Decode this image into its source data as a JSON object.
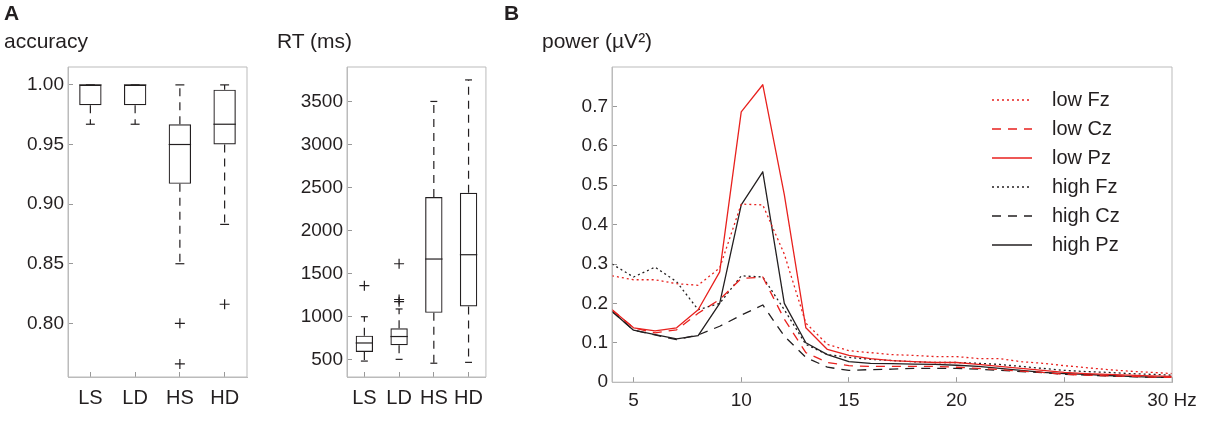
{
  "chart_data": [
    {
      "type": "box",
      "annotations": [
        "A"
      ],
      "ylabel": "accuracy",
      "categories": [
        "LS",
        "LD",
        "HS",
        "HD"
      ],
      "ylim": [
        0.755,
        1.015
      ],
      "yticks": [
        {
          "value": 0.8,
          "label": "0.80"
        },
        {
          "value": 0.85,
          "label": "0.85"
        },
        {
          "value": 0.9,
          "label": "0.90"
        },
        {
          "value": 0.95,
          "label": "0.95"
        },
        {
          "value": 1,
          "label": "1.00"
        }
      ],
      "boxes": [
        {
          "low": 0.967,
          "q1": 0.983,
          "median": 1,
          "q3": 1,
          "high": 1
        },
        {
          "low": 0.967,
          "q1": 0.983,
          "median": 1,
          "q3": 1,
          "high": 1
        },
        {
          "low": 0.85,
          "q1": 0.917,
          "median": 0.95,
          "q3": 0.967,
          "high": 1,
          "outliers": [
            0.8,
            0.766
          ]
        },
        {
          "low": 0.883,
          "q1": 0.95,
          "median": 0.967,
          "q3": 0.996,
          "high": 1,
          "outliers": [
            0.816
          ]
        }
      ]
    },
    {
      "type": "box",
      "ylabel": "RT (ms)",
      "categories": [
        "LS",
        "LD",
        "HS",
        "HD"
      ],
      "ylim": [
        300,
        3900
      ],
      "yticks": [
        500,
        1000,
        1500,
        2000,
        2500,
        3000,
        3500
      ],
      "boxes": [
        {
          "low": 485,
          "q1": 590,
          "median": 695,
          "q3": 780,
          "high": 1000,
          "outliers": [
            1360
          ]
        },
        {
          "low": 505,
          "q1": 670,
          "median": 770,
          "q3": 865,
          "high": 1090,
          "outliers": [
            1615,
            1200,
            1175
          ]
        },
        {
          "low": 460,
          "q1": 1045,
          "median": 1670,
          "q3": 2390,
          "high": 3500
        },
        {
          "low": 470,
          "q1": 1120,
          "median": 1720,
          "q3": 2440,
          "high": 3750
        }
      ]
    },
    {
      "type": "line",
      "annotations": [
        "B"
      ],
      "ylabel": "power (µV²)",
      "legend": "top right",
      "marker": "none",
      "x": [
        4,
        5,
        6,
        7,
        8,
        9,
        10,
        11,
        12,
        13,
        14,
        15,
        16,
        17,
        18,
        19,
        20,
        21,
        22,
        23,
        24,
        25,
        26,
        27,
        28,
        29,
        30
      ],
      "xlim": [
        4,
        30
      ],
      "xticks": [
        5,
        10,
        15,
        20,
        25,
        {
          "value": 30,
          "label": "30 Hz"
        }
      ],
      "ylim": [
        0,
        0.8
      ],
      "yticks": [
        0,
        0.1,
        0.2,
        0.3,
        0.4,
        0.5,
        0.6,
        0.7
      ],
      "series": [
        {
          "name": "low Fz",
          "color": "#e8211e",
          "line_style": "dotted",
          "values": [
            0.27,
            0.26,
            0.26,
            0.25,
            0.246,
            0.29,
            0.452,
            0.45,
            0.325,
            0.15,
            0.096,
            0.08,
            0.075,
            0.07,
            0.068,
            0.065,
            0.065,
            0.06,
            0.06,
            0.052,
            0.048,
            0.042,
            0.037,
            0.032,
            0.028,
            0.025,
            0.022
          ]
        },
        {
          "name": "low Cz",
          "color": "#e8211e",
          "line_style": "dashed",
          "values": [
            0.184,
            0.138,
            0.125,
            0.133,
            0.175,
            0.21,
            0.263,
            0.267,
            0.16,
            0.075,
            0.05,
            0.042,
            0.04,
            0.04,
            0.04,
            0.04,
            0.038,
            0.035,
            0.032,
            0.028,
            0.025,
            0.02,
            0.018,
            0.016,
            0.015,
            0.013,
            0.012
          ]
        },
        {
          "name": "low Pz",
          "color": "#e8211e",
          "line_style": "solid",
          "values": [
            0.184,
            0.138,
            0.13,
            0.138,
            0.184,
            0.28,
            0.686,
            0.755,
            0.476,
            0.138,
            0.083,
            0.068,
            0.06,
            0.055,
            0.052,
            0.05,
            0.05,
            0.045,
            0.04,
            0.035,
            0.03,
            0.025,
            0.022,
            0.02,
            0.018,
            0.016,
            0.015
          ]
        },
        {
          "name": "high Fz",
          "color": "#231f20",
          "line_style": "dotted",
          "values": [
            0.3,
            0.267,
            0.292,
            0.255,
            0.184,
            0.2,
            0.27,
            0.267,
            0.184,
            0.096,
            0.07,
            0.063,
            0.058,
            0.055,
            0.052,
            0.05,
            0.05,
            0.048,
            0.045,
            0.04,
            0.035,
            0.03,
            0.027,
            0.025,
            0.022,
            0.02,
            0.018
          ]
        },
        {
          "name": "high Cz",
          "color": "#231f20",
          "line_style": "dashed",
          "values": [
            0.18,
            0.132,
            0.12,
            0.108,
            0.12,
            0.142,
            0.17,
            0.196,
            0.117,
            0.063,
            0.038,
            0.03,
            0.032,
            0.033,
            0.035,
            0.035,
            0.035,
            0.033,
            0.03,
            0.027,
            0.024,
            0.02,
            0.018,
            0.016,
            0.014,
            0.013,
            0.012
          ]
        },
        {
          "name": "high Pz",
          "color": "#231f20",
          "line_style": "solid",
          "values": [
            0.18,
            0.132,
            0.121,
            0.11,
            0.118,
            0.2,
            0.45,
            0.534,
            0.2,
            0.1,
            0.07,
            0.052,
            0.048,
            0.047,
            0.046,
            0.045,
            0.043,
            0.04,
            0.035,
            0.03,
            0.025,
            0.022,
            0.02,
            0.017,
            0.015,
            0.013,
            0.012
          ]
        }
      ]
    }
  ]
}
